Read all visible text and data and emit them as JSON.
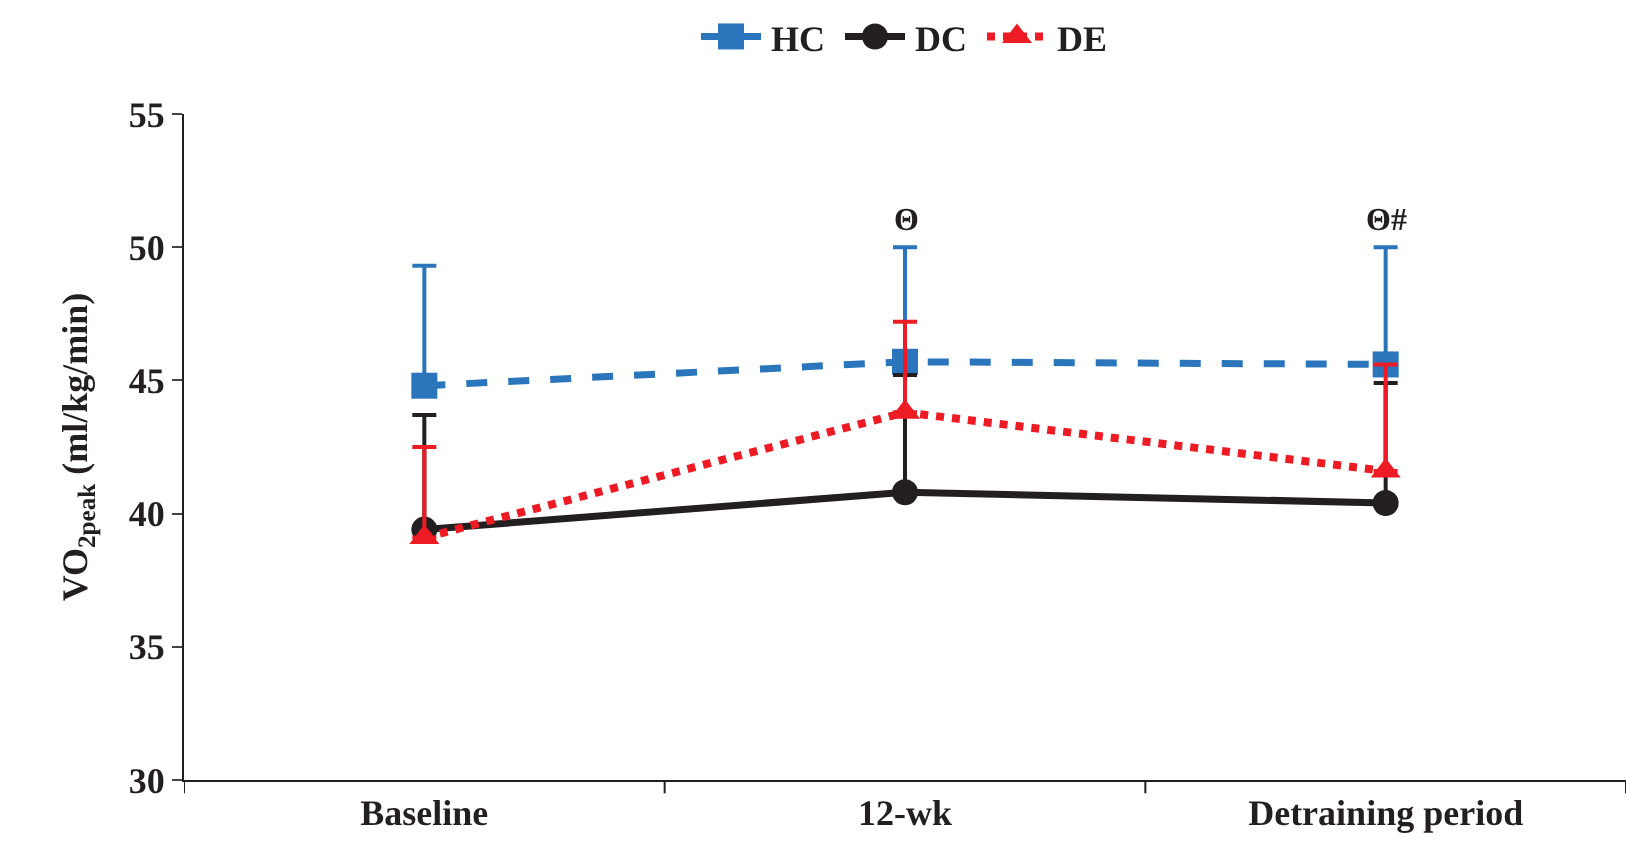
{
  "chart_data": {
    "type": "line",
    "ylabel": "VO$_{2peak}$ (ml/kg/min)",
    "categories": [
      "Baseline",
      "12-wk",
      "Detraining period"
    ],
    "ylim": [
      30,
      55
    ],
    "yticks": [
      30,
      35,
      40,
      45,
      50,
      55
    ],
    "legend": "top",
    "series": [
      {
        "name": "HC",
        "color": "#2a75bb",
        "values": [
          44.8,
          45.7,
          45.6
        ],
        "marker": "square",
        "line_style": "dashed",
        "errors": [
          [
            44.8,
            49.3
          ],
          [
            45.7,
            50.0
          ],
          [
            45.6,
            50.0
          ]
        ]
      },
      {
        "name": "DC",
        "color": "#231f20",
        "values": [
          39.4,
          40.8,
          40.4
        ],
        "marker": "circle",
        "line_style": "solid",
        "errors": [
          [
            39.4,
            43.7
          ],
          [
            40.8,
            45.2
          ],
          [
            40.4,
            44.9
          ]
        ]
      },
      {
        "name": "DE",
        "color": "#ed1c24",
        "values": [
          39.1,
          43.8,
          41.6
        ],
        "marker": "triangle",
        "line_style": "dotted",
        "errors": [
          [
            39.1,
            42.5
          ],
          [
            43.8,
            47.2
          ],
          [
            41.6,
            45.6
          ]
        ]
      }
    ],
    "annotations": [
      "Θ",
      "Θ#"
    ]
  }
}
